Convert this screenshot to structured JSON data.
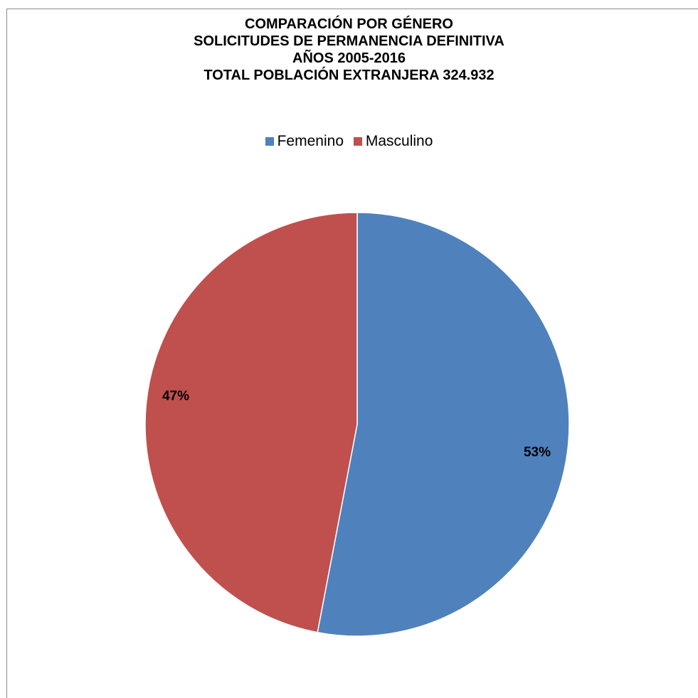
{
  "chart_data": {
    "type": "pie",
    "title_lines": [
      "COMPARACIÓN POR GÉNERO",
      "SOLICITUDES DE PERMANENCIA DEFINITIVA",
      "AÑOS 2005-2016",
      "TOTAL POBLACIÓN EXTRANJERA 324.932"
    ],
    "legend_position": "top",
    "slices": [
      {
        "name": "Femenino",
        "value": 53,
        "label": "53%",
        "color": "#4f81bd"
      },
      {
        "name": "Masculino",
        "value": 47,
        "label": "47%",
        "color": "#c0504d"
      }
    ]
  }
}
